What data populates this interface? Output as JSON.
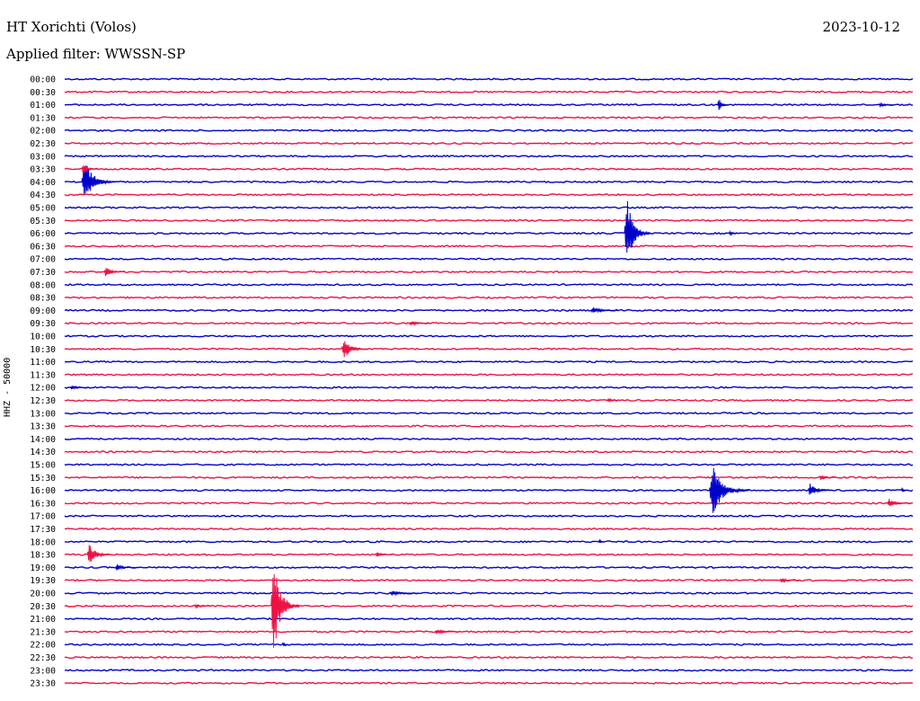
{
  "header": {
    "title": "HT Xorichti (Volos)",
    "date": "2023-10-12",
    "filter": "Applied filter: WWSSN-SP"
  },
  "colors": {
    "even_hour": "#0000cc",
    "odd_half": "#ee1144"
  },
  "chart_data": {
    "type": "line",
    "ylabel": "HHZ - 50000",
    "row_labels": [
      "00:00",
      "00:30",
      "01:00",
      "01:30",
      "02:00",
      "02:30",
      "03:00",
      "03:30",
      "04:00",
      "04:30",
      "05:00",
      "05:30",
      "06:00",
      "06:30",
      "07:00",
      "07:30",
      "08:00",
      "08:30",
      "09:00",
      "09:30",
      "10:00",
      "10:30",
      "11:00",
      "11:30",
      "12:00",
      "12:30",
      "13:00",
      "13:30",
      "14:00",
      "14:30",
      "15:00",
      "15:30",
      "16:00",
      "16:30",
      "17:00",
      "17:30",
      "18:00",
      "18:30",
      "19:00",
      "19:30",
      "20:00",
      "20:30",
      "21:00",
      "21:30",
      "22:00",
      "22:30",
      "23:00",
      "23:30"
    ],
    "events": [
      {
        "row": 8,
        "minute": 0.6,
        "amp": 26,
        "dur": 1.2
      },
      {
        "row": 7,
        "minute": 0.6,
        "amp": 6,
        "dur": 0.6
      },
      {
        "row": 2,
        "minute": 23.1,
        "amp": 8,
        "dur": 0.4
      },
      {
        "row": 2,
        "minute": 28.8,
        "amp": 3,
        "dur": 0.5
      },
      {
        "row": 12,
        "minute": 19.8,
        "amp": 44,
        "dur": 0.9
      },
      {
        "row": 12,
        "minute": 23.5,
        "amp": 3,
        "dur": 0.4
      },
      {
        "row": 15,
        "minute": 1.4,
        "amp": 7,
        "dur": 0.7
      },
      {
        "row": 18,
        "minute": 18.6,
        "amp": 4,
        "dur": 1.0
      },
      {
        "row": 19,
        "minute": 12.2,
        "amp": 3,
        "dur": 0.8
      },
      {
        "row": 21,
        "minute": 9.8,
        "amp": 12,
        "dur": 0.9
      },
      {
        "row": 24,
        "minute": 0.2,
        "amp": 3,
        "dur": 0.6
      },
      {
        "row": 25,
        "minute": 19.2,
        "amp": 3,
        "dur": 0.4
      },
      {
        "row": 32,
        "minute": 22.8,
        "amp": 30,
        "dur": 1.4
      },
      {
        "row": 32,
        "minute": 26.3,
        "amp": 9,
        "dur": 0.8
      },
      {
        "row": 32,
        "minute": 29.6,
        "amp": 4,
        "dur": 0.2
      },
      {
        "row": 31,
        "minute": 26.7,
        "amp": 3,
        "dur": 0.6
      },
      {
        "row": 33,
        "minute": 29.1,
        "amp": 5,
        "dur": 0.8
      },
      {
        "row": 36,
        "minute": 18.9,
        "amp": 4,
        "dur": 0.2
      },
      {
        "row": 37,
        "minute": 0.8,
        "amp": 12,
        "dur": 0.9
      },
      {
        "row": 37,
        "minute": 11.0,
        "amp": 3,
        "dur": 0.6
      },
      {
        "row": 38,
        "minute": 1.8,
        "amp": 4,
        "dur": 0.7
      },
      {
        "row": 39,
        "minute": 25.3,
        "amp": 3,
        "dur": 0.7
      },
      {
        "row": 40,
        "minute": 11.5,
        "amp": 3,
        "dur": 1.0
      },
      {
        "row": 41,
        "minute": 7.3,
        "amp": 56,
        "dur": 1.0
      },
      {
        "row": 41,
        "minute": 4.6,
        "amp": 2,
        "dur": 0.6
      },
      {
        "row": 43,
        "minute": 13.1,
        "amp": 3,
        "dur": 0.9
      },
      {
        "row": 44,
        "minute": 7.7,
        "amp": 6,
        "dur": 0.2
      }
    ]
  }
}
